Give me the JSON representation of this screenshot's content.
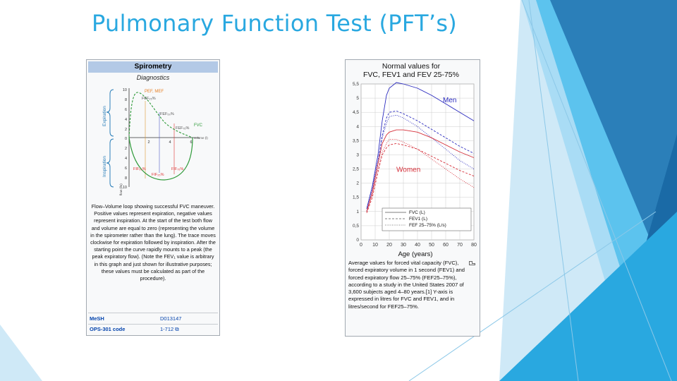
{
  "slide": {
    "title": "Pulmonary Function Test (PFT’s)",
    "accent_color": "#29a8e0"
  },
  "left_infobox": {
    "header": "Spirometry",
    "subheader": "Diagnostics",
    "diagram": {
      "labels": {
        "pef": "PEF, MEF",
        "fef25": "FEF₂₅%",
        "fef50": "FEF₅₀%",
        "fvc": "FVC",
        "fef75": "FEF₇₅%",
        "volume": "volume (l)",
        "fif50": "FIF₅₀%",
        "fif25": "FIF₂₅%",
        "fif75": "FIF₇₅%",
        "expiration": "Expiration",
        "inspiration": "Inspiration",
        "flow_axis": "flow (l/s)"
      },
      "y_ticks": [
        "10",
        "8",
        "6",
        "4",
        "2",
        "0",
        "2",
        "4",
        "6",
        "8",
        "10"
      ],
      "x_ticks": [
        "2",
        "4",
        "6"
      ]
    },
    "caption": "Flow–Volume loop showing successful FVC maneuver. Positive values represent expiration, negative values represent inspiration. At the start of the test both flow and volume are equal to zero (representing the volume in the spirometer rather than the lung). The trace moves clockwise for expiration followed by inspiration. After the starting point the curve rapidly mounts to a peak (the peak expiratory flow). (Note the FEV₁ value is arbitrary in this graph and just shown for illustrative purposes; these values must be calculated as part of the procedure).",
    "rows": [
      {
        "label": "MeSH",
        "value": "D013147"
      },
      {
        "label": "OPS-301 code",
        "value": "1-712 ⧉"
      }
    ]
  },
  "right_infobox": {
    "caption": "Average values for forced vital capacity (FVC), forced expiratory volume in 1 second (FEV1) and forced expiratory flow 25–75% (FEF25–75%), according to a study in the United States 2007 of 3,600 subjects aged 4–80 years.[1] Y-axis is expressed in litres for FVC and FEV1, and in litres/second for FEF25–75%."
  },
  "chart_data": {
    "type": "line",
    "title": "Normal values for FVC, FEV1 and FEV 25-75%",
    "title_lines": [
      "Normal values for",
      "FVC, FEV1 and FEV 25-75%"
    ],
    "xlabel": "Age (years)",
    "ylabel": "",
    "xlim": [
      0,
      80
    ],
    "ylim": [
      0,
      5.5
    ],
    "x_ticks": [
      "0",
      "10",
      "20",
      "30",
      "40",
      "50",
      "60",
      "70",
      "80"
    ],
    "y_ticks": [
      "0",
      "0,5",
      "1",
      "1,5",
      "2",
      "2,5",
      "3",
      "3,5",
      "4",
      "4,5",
      "5",
      "5,5"
    ],
    "annotations": [
      "Men",
      "Women"
    ],
    "legend": [
      {
        "name": "FVC (L)",
        "style": "solid"
      },
      {
        "name": "FEV1 (L)",
        "style": "dashed"
      },
      {
        "name": "FEF 25–75% (L/s)",
        "style": "dotted"
      }
    ],
    "legend_position": "bottom-right",
    "colors": {
      "men": "#2b2bbf",
      "women": "#d6303a"
    },
    "series": [
      {
        "name": "Men FVC (L)",
        "group": "men",
        "style": "solid",
        "x": [
          4,
          8,
          12,
          15,
          18,
          20,
          25,
          30,
          40,
          50,
          60,
          70,
          80
        ],
        "y": [
          1.1,
          1.9,
          3.0,
          4.2,
          5.1,
          5.35,
          5.55,
          5.5,
          5.35,
          5.1,
          4.8,
          4.5,
          4.2
        ]
      },
      {
        "name": "Men FEV1 (L)",
        "group": "men",
        "style": "dashed",
        "x": [
          4,
          8,
          12,
          15,
          18,
          20,
          25,
          30,
          40,
          50,
          60,
          70,
          80
        ],
        "y": [
          1.0,
          1.7,
          2.7,
          3.7,
          4.3,
          4.5,
          4.55,
          4.45,
          4.2,
          3.9,
          3.6,
          3.3,
          3.05
        ]
      },
      {
        "name": "Men FEF 25–75% (L/s)",
        "group": "men",
        "style": "dotted",
        "x": [
          4,
          8,
          12,
          15,
          18,
          20,
          25,
          30,
          40,
          50,
          60,
          70,
          80
        ],
        "y": [
          1.1,
          1.8,
          2.8,
          3.6,
          4.1,
          4.35,
          4.4,
          4.3,
          4.0,
          3.6,
          3.2,
          2.8,
          2.5
        ]
      },
      {
        "name": "Women FVC (L)",
        "group": "women",
        "style": "solid",
        "x": [
          4,
          8,
          12,
          15,
          18,
          20,
          25,
          30,
          40,
          50,
          60,
          70,
          80
        ],
        "y": [
          1.0,
          1.7,
          2.7,
          3.4,
          3.7,
          3.8,
          3.88,
          3.88,
          3.8,
          3.6,
          3.35,
          3.1,
          2.9
        ]
      },
      {
        "name": "Women FEV1 (L)",
        "group": "women",
        "style": "dashed",
        "x": [
          4,
          8,
          12,
          15,
          18,
          20,
          25,
          30,
          40,
          50,
          60,
          70,
          80
        ],
        "y": [
          0.95,
          1.5,
          2.4,
          3.0,
          3.25,
          3.35,
          3.4,
          3.35,
          3.2,
          2.95,
          2.7,
          2.45,
          2.25
        ]
      },
      {
        "name": "Women FEF 25–75% (L/s)",
        "group": "women",
        "style": "dotted",
        "x": [
          4,
          8,
          12,
          15,
          18,
          20,
          25,
          30,
          40,
          50,
          60,
          70,
          80
        ],
        "y": [
          1.0,
          1.6,
          2.5,
          3.1,
          3.4,
          3.55,
          3.55,
          3.45,
          3.2,
          2.85,
          2.5,
          2.15,
          1.85
        ]
      }
    ]
  }
}
